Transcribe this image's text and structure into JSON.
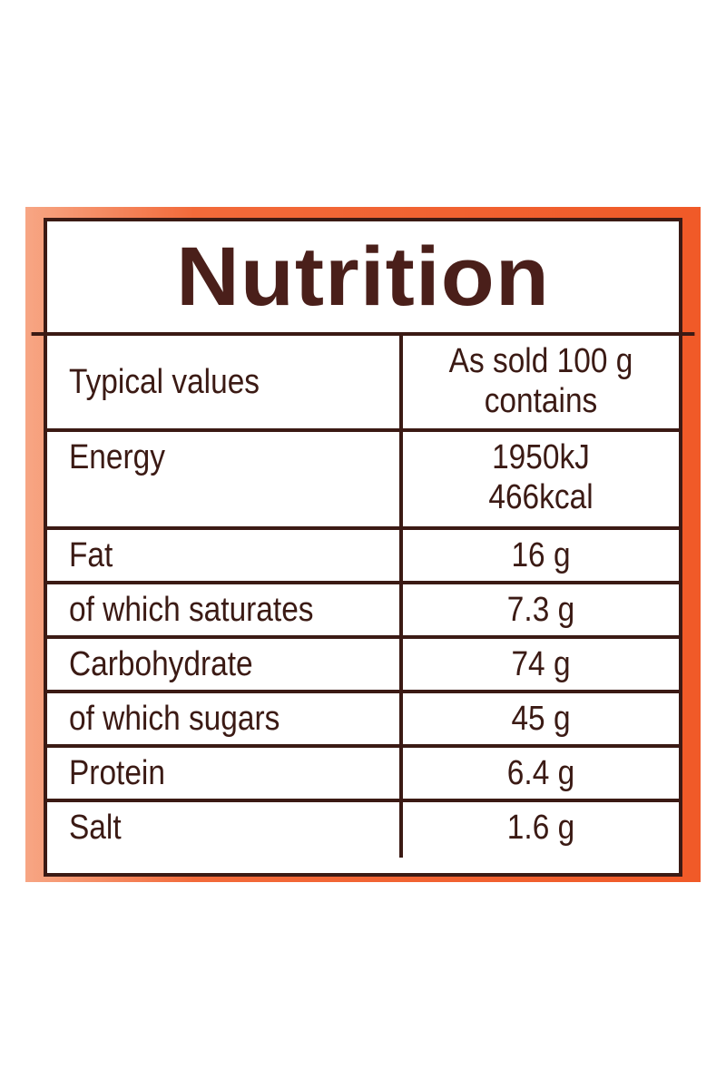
{
  "title": "Nutrition",
  "table": {
    "header": [
      "Typical values",
      [
        "As sold 100 g",
        "contains"
      ]
    ],
    "rows": [
      [
        "Energy",
        [
          "1950kJ",
          "466kcal"
        ]
      ],
      [
        "Fat",
        [
          "16 g"
        ]
      ],
      [
        "of which saturates",
        [
          "7.3 g"
        ]
      ],
      [
        "Carbohydrate",
        [
          "74 g"
        ]
      ],
      [
        "of which sugars",
        [
          "45 g"
        ]
      ],
      [
        "Protein",
        [
          "6.4 g"
        ]
      ],
      [
        "Salt",
        [
          "1.6 g"
        ]
      ]
    ]
  }
}
